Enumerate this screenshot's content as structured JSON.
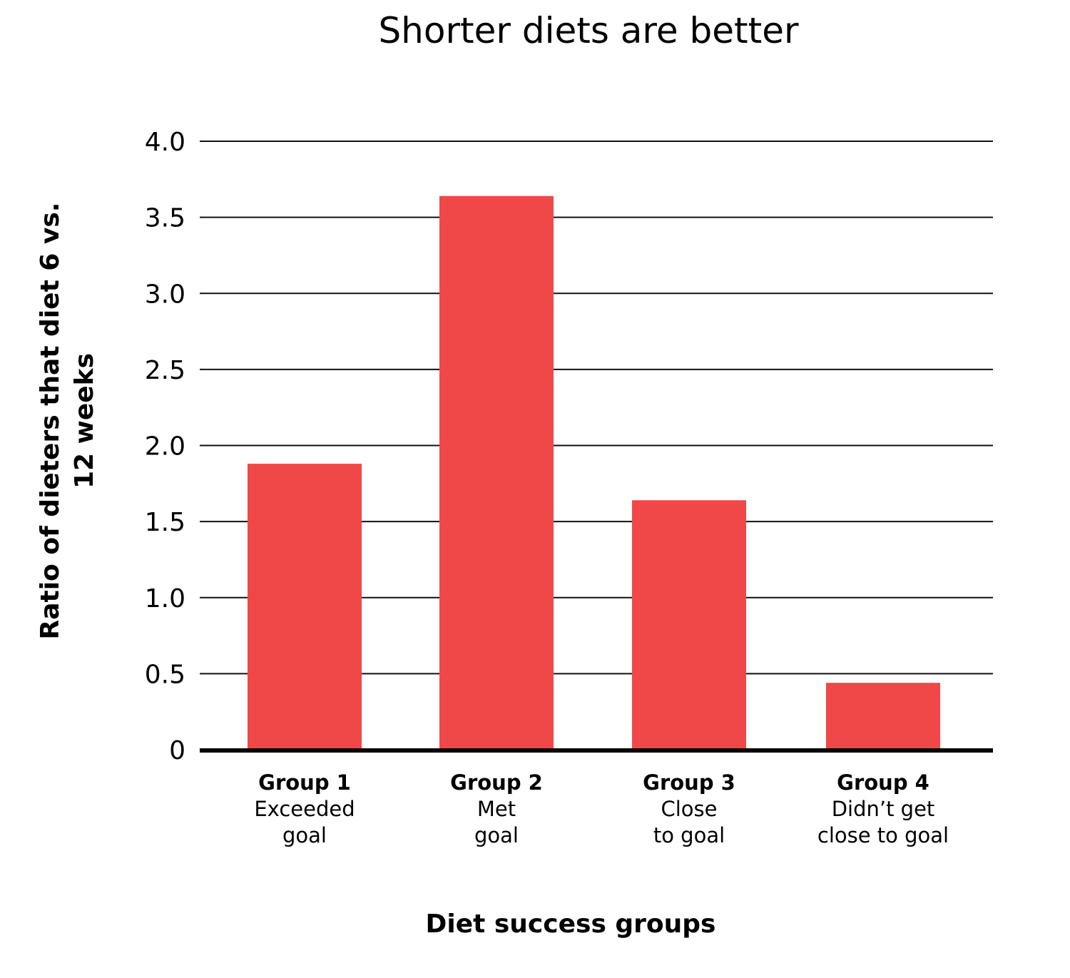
{
  "chart_data": {
    "type": "bar",
    "title": "Shorter diets are better",
    "xlabel": "Diet success groups",
    "ylabel": [
      "Ratio of dieters that diet 6 vs.",
      "12 weeks"
    ],
    "ylim": [
      0,
      4.0
    ],
    "yticks": [
      "0",
      "0.5",
      "1.0",
      "1.5",
      "2.0",
      "2.5",
      "3.0",
      "3.5",
      "4.0"
    ],
    "grid": true,
    "categories": [
      {
        "name": "Group 1",
        "desc": [
          "Exceeded",
          "goal"
        ]
      },
      {
        "name": "Group 2",
        "desc": [
          "Met",
          "goal"
        ]
      },
      {
        "name": "Group 3",
        "desc": [
          "Close",
          "to goal"
        ]
      },
      {
        "name": "Group 4",
        "desc": [
          "Didn’t get",
          "close to goal"
        ]
      }
    ],
    "values": [
      1.88,
      3.64,
      1.64,
      0.44
    ],
    "bar_color": "#F04848"
  }
}
